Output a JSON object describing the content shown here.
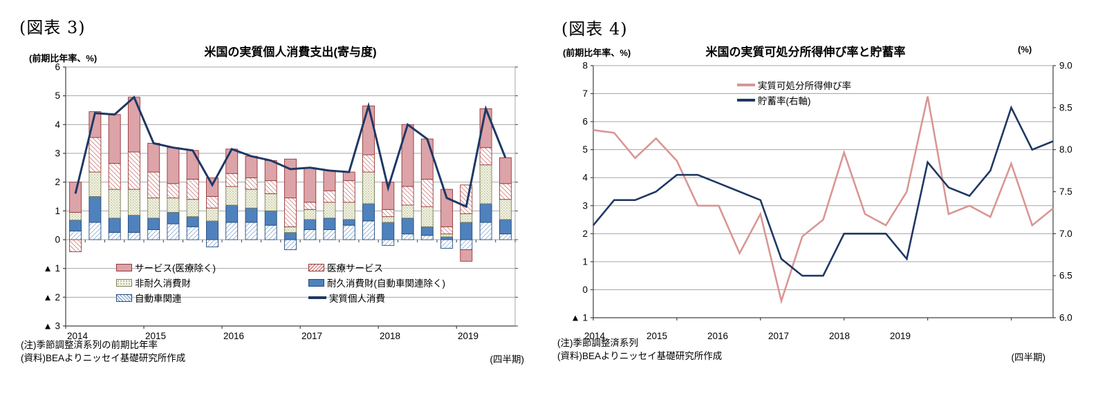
{
  "figure3": {
    "label": "(図表 3)",
    "axis_unit": "(前期比年率、%)",
    "title": "米国の実質個人消費支出(寄与度)",
    "y_ticks": [
      "6",
      "5",
      "4",
      "3",
      "2",
      "1",
      "0",
      "▲ 1",
      "▲ 2",
      "▲ 3"
    ],
    "x_years": [
      "2014",
      "2015",
      "2016",
      "2017",
      "2018",
      "2019"
    ],
    "legend": {
      "services": "サービス(医療除く)",
      "medical": "医療サービス",
      "nondurable": "非耐久消費財",
      "durable": "耐久消費財(自動車関連除く)",
      "auto": "自動車関連",
      "total_line": "実質個人消費"
    },
    "notes": [
      "(注)季節調整済系列の前期比年率",
      "(資料)BEAよりニッセイ基礎研究所作成"
    ],
    "period_label": "(四半期)"
  },
  "figure4": {
    "label": "(図表 4)",
    "axis_unit": "(前期比年率、%)",
    "right_axis_unit": "(%)",
    "title": "米国の実質可処分所得伸び率と貯蓄率",
    "y_left_ticks": [
      "8",
      "7",
      "6",
      "5",
      "4",
      "3",
      "2",
      "1",
      "0",
      "▲ 1"
    ],
    "y_right_ticks": [
      "9.0",
      "8.5",
      "8.0",
      "7.5",
      "7.0",
      "6.5",
      "6.0"
    ],
    "x_years": [
      "2014",
      "2015",
      "2016",
      "2017",
      "2018",
      "2019"
    ],
    "legend": {
      "income_line": "実質可処分所得伸び率",
      "saving_line": "貯蓄率(右軸)"
    },
    "notes": [
      "(注)季節調整済系列",
      "(資料)BEAよりニッセイ基礎研究所作成"
    ],
    "period_label": "(四半期)"
  },
  "colors": {
    "services_fill": "#dca3a9",
    "segment_border_red": "#943634",
    "medical_hatch": "#c9706f",
    "nondurable_fill": "#f2f3e4",
    "nondurable_dot": "#a9ad83",
    "nondurable_border": "#7c7c54",
    "durable_fill": "#4f81bd",
    "blue_border": "#1f497d",
    "auto_hatch": "#7ba0cd",
    "total_line": "#1f3864",
    "income_line": "#d99694",
    "saving_line": "#1f3864",
    "gridline": "#a6a6a6",
    "axis": "#404040"
  },
  "chart_data": [
    {
      "type": "bar",
      "subtype": "stacked-bar-with-line",
      "title": "米国の実質個人消費支出(寄与度)",
      "ylabel": "(前期比年率、%)",
      "ylim": [
        -3,
        6
      ],
      "grid": true,
      "legend_position": "inside-bottom-left",
      "categories": [
        "2014Q1",
        "2014Q2",
        "2014Q3",
        "2014Q4",
        "2015Q1",
        "2015Q2",
        "2015Q3",
        "2015Q4",
        "2016Q1",
        "2016Q2",
        "2016Q3",
        "2016Q4",
        "2017Q1",
        "2017Q2",
        "2017Q3",
        "2017Q4",
        "2018Q1",
        "2018Q2",
        "2018Q3",
        "2018Q4",
        "2019Q1",
        "2019Q2",
        "2019Q3"
      ],
      "series": [
        {
          "name": "サービス(医療除く)",
          "type": "bar",
          "values": [
            1.05,
            0.9,
            1.7,
            1.9,
            1.0,
            1.25,
            1.0,
            0.65,
            0.85,
            0.75,
            0.7,
            1.35,
            1.2,
            0.7,
            0.3,
            1.7,
            0.95,
            2.15,
            1.4,
            1.3,
            -0.4,
            1.35,
            0.9
          ]
        },
        {
          "name": "医療サービス",
          "type": "bar",
          "values": [
            -0.42,
            1.2,
            0.9,
            1.3,
            0.9,
            0.5,
            0.7,
            0.4,
            0.45,
            0.4,
            0.45,
            1.0,
            0.25,
            0.4,
            0.75,
            0.6,
            0.25,
            0.65,
            0.95,
            0.25,
            1.0,
            0.6,
            0.55
          ]
        },
        {
          "name": "非耐久消費財",
          "type": "bar",
          "values": [
            0.27,
            0.85,
            1.0,
            0.9,
            0.7,
            0.5,
            0.6,
            0.45,
            0.65,
            0.65,
            0.6,
            0.2,
            0.35,
            0.55,
            0.6,
            1.1,
            0.2,
            0.45,
            0.7,
            0.1,
            0.3,
            1.35,
            0.7
          ]
        },
        {
          "name": "耐久消費財(自動車関連除く)",
          "type": "bar",
          "values": [
            0.38,
            0.9,
            0.5,
            0.6,
            0.4,
            0.4,
            0.35,
            0.65,
            0.6,
            0.5,
            0.5,
            0.25,
            0.35,
            0.4,
            0.2,
            0.6,
            0.6,
            0.55,
            0.3,
            0.1,
            0.6,
            0.65,
            0.5
          ]
        },
        {
          "name": "自動車関連",
          "type": "bar",
          "values": [
            0.3,
            0.6,
            0.25,
            0.25,
            0.35,
            0.55,
            0.45,
            -0.25,
            0.6,
            0.6,
            0.5,
            -0.35,
            0.35,
            0.35,
            0.5,
            0.65,
            -0.2,
            0.2,
            0.15,
            -0.3,
            -0.35,
            0.6,
            0.2
          ]
        },
        {
          "name": "実質個人消費",
          "type": "line",
          "values": [
            1.6,
            4.4,
            4.35,
            4.95,
            3.35,
            3.2,
            3.1,
            1.9,
            3.15,
            2.9,
            2.75,
            2.45,
            2.5,
            2.4,
            2.35,
            4.65,
            1.8,
            4.0,
            3.5,
            1.45,
            1.15,
            4.55,
            2.85
          ]
        }
      ]
    },
    {
      "type": "line",
      "title": "米国の実質可処分所得伸び率と貯蓄率",
      "ylabel_left": "(前期比年率、%)",
      "ylabel_right": "(%)",
      "ylim_left": [
        -1,
        8
      ],
      "ylim_right": [
        6.0,
        9.0
      ],
      "grid": true,
      "legend_position": "inside-top",
      "categories": [
        "2014Q1",
        "2014Q2",
        "2014Q3",
        "2014Q4",
        "2015Q1",
        "2015Q2",
        "2015Q3",
        "2015Q4",
        "2016Q1",
        "2016Q2",
        "2016Q3",
        "2016Q4",
        "2017Q1",
        "2017Q2",
        "2017Q3",
        "2017Q4",
        "2018Q1",
        "2018Q2",
        "2018Q3",
        "2018Q4",
        "2019Q1",
        "2019Q2",
        "2019Q3"
      ],
      "series": [
        {
          "name": "実質可処分所得伸び率",
          "axis": "left",
          "values": [
            5.7,
            5.6,
            4.7,
            5.4,
            4.6,
            3.0,
            3.0,
            1.3,
            2.7,
            -0.4,
            1.9,
            2.5,
            4.9,
            2.7,
            2.3,
            3.5,
            6.9,
            2.7,
            3.0,
            2.6,
            4.5,
            2.3,
            2.9
          ]
        },
        {
          "name": "貯蓄率(右軸)",
          "axis": "right",
          "values": [
            7.1,
            7.4,
            7.4,
            7.5,
            7.7,
            7.7,
            7.6,
            7.5,
            7.4,
            6.7,
            6.5,
            6.5,
            7.0,
            7.0,
            7.0,
            6.7,
            7.85,
            7.55,
            7.45,
            7.75,
            8.5,
            8.0,
            8.1
          ]
        }
      ]
    }
  ]
}
